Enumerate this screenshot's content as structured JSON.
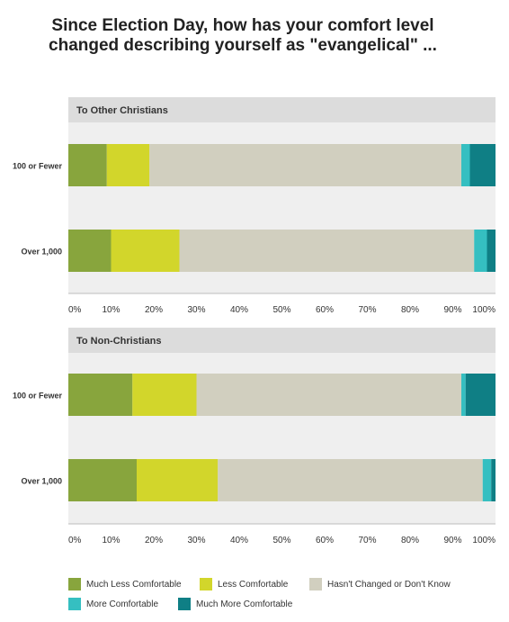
{
  "chart_data": {
    "type": "bar",
    "title": "Since Election Day, how has your comfort level changed describing yourself as \"evangelical\" ...",
    "stacked": true,
    "orientation": "horizontal",
    "xlim": [
      0,
      100
    ],
    "x_ticks": [
      "0%",
      "10%",
      "20%",
      "30%",
      "40%",
      "50%",
      "60%",
      "70%",
      "80%",
      "90%",
      "100%"
    ],
    "legend_position": "bottom",
    "series_names": [
      "Much Less Comfortable",
      "Less Comfortable",
      "Hasn't Changed or Don't Know",
      "More Comfortable",
      "Much More Comfortable"
    ],
    "colors": [
      "#88a53d",
      "#d2d62b",
      "#d1cfbf",
      "#35bfc1",
      "#0f7f85"
    ],
    "panels": [
      {
        "title": "To Other Christians",
        "categories": [
          "100 or Fewer",
          "Over 1,000"
        ],
        "series": [
          {
            "name": "Much Less Comfortable",
            "values": [
              9,
              10
            ]
          },
          {
            "name": "Less Comfortable",
            "values": [
              10,
              16
            ]
          },
          {
            "name": "Hasn't Changed or Don't Know",
            "values": [
              73,
              69
            ]
          },
          {
            "name": "More Comfortable",
            "values": [
              2,
              3
            ]
          },
          {
            "name": "Much More Comfortable",
            "values": [
              6,
              2
            ]
          }
        ]
      },
      {
        "title": "To Non-Christians",
        "categories": [
          "100 or Fewer",
          "Over 1,000"
        ],
        "series": [
          {
            "name": "Much Less Comfortable",
            "values": [
              15,
              16
            ]
          },
          {
            "name": "Less Comfortable",
            "values": [
              15,
              19
            ]
          },
          {
            "name": "Hasn't Changed or Don't Know",
            "values": [
              62,
              62
            ]
          },
          {
            "name": "More Comfortable",
            "values": [
              1,
              2
            ]
          },
          {
            "name": "Much More Comfortable",
            "values": [
              7,
              1
            ]
          }
        ]
      }
    ]
  }
}
